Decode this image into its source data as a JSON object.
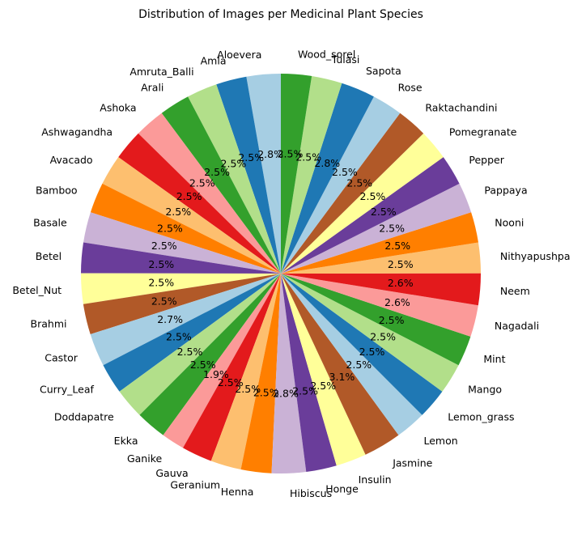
{
  "chart_data": {
    "type": "pie",
    "title": "Distribution of Images per Medicinal Plant Species",
    "start_angle_deg": 90,
    "direction": "counterclockwise",
    "labels": [
      "Aloevera",
      "Amla",
      "Amruta_Balli",
      "Arali",
      "Ashoka",
      "Ashwagandha",
      "Avacado",
      "Bamboo",
      "Basale",
      "Betel",
      "Betel_Nut",
      "Brahmi",
      "Castor",
      "Curry_Leaf",
      "Doddapatre",
      "Ekka",
      "Ganike",
      "Gauva",
      "Geranium",
      "Henna",
      "Hibiscus",
      "Honge",
      "Insulin",
      "Jasmine",
      "Lemon",
      "Lemon_grass",
      "Mango",
      "Mint",
      "Nagadali",
      "Neem",
      "Nithyapushpa",
      "Nooni",
      "Pappaya",
      "Pepper",
      "Pomegranate",
      "Raktachandini",
      "Rose",
      "Sapota",
      "Tulasi",
      "Wood_sorel"
    ],
    "percent_labels": [
      "2.8%",
      "2.5%",
      "2.5%",
      "2.5%",
      "2.5%",
      "2.5%",
      "2.5%",
      "2.5%",
      "2.5%",
      "2.5%",
      "2.5%",
      "2.5%",
      "2.7%",
      "2.5%",
      "2.5%",
      "2.5%",
      "1.9%",
      "2.5%",
      "2.5%",
      "2.5%",
      "2.8%",
      "2.5%",
      "2.5%",
      "3.1%",
      "2.5%",
      "2.5%",
      "2.5%",
      "2.5%",
      "2.6%",
      "2.6%",
      "2.5%",
      "2.5%",
      "2.5%",
      "2.5%",
      "2.5%",
      "2.5%",
      "2.5%",
      "2.8%",
      "2.5%",
      "2.5%"
    ],
    "values": [
      2.8,
      2.5,
      2.5,
      2.5,
      2.5,
      2.5,
      2.5,
      2.5,
      2.5,
      2.5,
      2.5,
      2.5,
      2.7,
      2.5,
      2.5,
      2.5,
      1.9,
      2.5,
      2.5,
      2.5,
      2.8,
      2.5,
      2.5,
      3.1,
      2.5,
      2.5,
      2.5,
      2.5,
      2.6,
      2.6,
      2.5,
      2.5,
      2.5,
      2.5,
      2.5,
      2.5,
      2.5,
      2.8,
      2.5,
      2.5
    ],
    "colors": [
      "#a6cee3",
      "#1f78b4",
      "#b2df8a",
      "#33a02c",
      "#fb9a99",
      "#e31a1c",
      "#fdbf6f",
      "#ff7f00",
      "#cab2d6",
      "#6a3d9a",
      "#ffff99",
      "#b15928"
    ]
  }
}
